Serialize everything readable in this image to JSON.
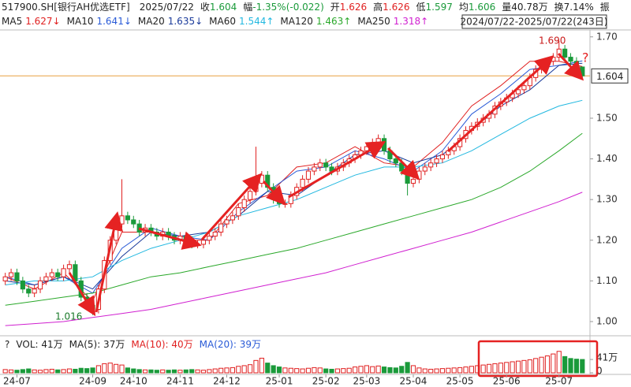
{
  "chart_data": {
    "type": "candlestick",
    "title": "517900.SH[银行AH优选ETF]",
    "date": "2025/07/22",
    "quote": [
      {
        "name": "收",
        "text": "1.604",
        "color": "#1a9a3a"
      },
      {
        "name": "幅",
        "text": "-1.35%(-0.022)",
        "color": "#1a9a3a"
      },
      {
        "name": "开",
        "text": "1.626",
        "color": "#e02020"
      },
      {
        "name": "高",
        "text": "1.626",
        "color": "#e02020"
      },
      {
        "name": "低",
        "text": "1.597",
        "color": "#1a9a3a"
      },
      {
        "name": "均",
        "text": "1.606",
        "color": "#1a9a3a"
      },
      {
        "name": "量",
        "text": "40.78万",
        "color": "#222222"
      },
      {
        "name": "换",
        "text": "7.14%",
        "color": "#222222"
      },
      {
        "name": "振",
        "text": "",
        "color": "#222222"
      }
    ],
    "range_label": "2024/07/22-2025/07/22(243日)",
    "ylim": [
      0.967,
      1.717
    ],
    "yticks": [
      {
        "value": 1.0,
        "label": "1.00"
      },
      {
        "value": 1.1,
        "label": "1.10"
      },
      {
        "value": 1.2,
        "label": "1.20"
      },
      {
        "value": 1.3,
        "label": "1.30"
      },
      {
        "value": 1.4,
        "label": "1.40"
      },
      {
        "value": 1.5,
        "label": "1.50"
      },
      {
        "value": 1.7,
        "label": "1.70"
      }
    ],
    "last_price": 1.604,
    "xticks": [
      {
        "value": 2,
        "label": "24-07"
      },
      {
        "value": 15,
        "label": "24-09"
      },
      {
        "value": 22,
        "label": "24-10"
      },
      {
        "value": 30,
        "label": "24-11"
      },
      {
        "value": 38,
        "label": "24-12"
      },
      {
        "value": 47,
        "label": "25-01"
      },
      {
        "value": 55,
        "label": "25-02"
      },
      {
        "value": 62,
        "label": "25-03"
      },
      {
        "value": 70,
        "label": "25-04"
      },
      {
        "value": 78,
        "label": "25-05"
      },
      {
        "value": 86,
        "label": "25-06"
      },
      {
        "value": 95,
        "label": "25-07"
      }
    ],
    "candles": {
      "open": [
        1.1,
        1.11,
        1.12,
        1.1,
        1.08,
        1.07,
        1.08,
        1.1,
        1.11,
        1.12,
        1.11,
        1.13,
        1.14,
        1.1,
        1.06,
        1.04,
        1.03,
        1.08,
        1.15,
        1.2,
        1.24,
        1.26,
        1.25,
        1.24,
        1.22,
        1.23,
        1.22,
        1.21,
        1.22,
        1.21,
        1.2,
        1.21,
        1.2,
        1.19,
        1.19,
        1.2,
        1.21,
        1.22,
        1.24,
        1.25,
        1.26,
        1.28,
        1.3,
        1.32,
        1.34,
        1.36,
        1.33,
        1.3,
        1.29,
        1.29,
        1.31,
        1.33,
        1.35,
        1.37,
        1.38,
        1.39,
        1.38,
        1.37,
        1.38,
        1.39,
        1.4,
        1.41,
        1.42,
        1.43,
        1.44,
        1.45,
        1.42,
        1.4,
        1.39,
        1.37,
        1.34,
        1.35,
        1.37,
        1.38,
        1.39,
        1.4,
        1.41,
        1.42,
        1.43,
        1.45,
        1.47,
        1.48,
        1.49,
        1.5,
        1.51,
        1.53,
        1.54,
        1.55,
        1.56,
        1.57,
        1.58,
        1.6,
        1.62,
        1.63,
        1.64,
        1.65,
        1.67,
        1.65,
        1.64,
        1.626
      ],
      "high": [
        1.12,
        1.13,
        1.13,
        1.11,
        1.09,
        1.09,
        1.11,
        1.12,
        1.13,
        1.13,
        1.14,
        1.15,
        1.15,
        1.11,
        1.07,
        1.05,
        1.09,
        1.16,
        1.21,
        1.25,
        1.35,
        1.27,
        1.26,
        1.25,
        1.24,
        1.24,
        1.23,
        1.23,
        1.23,
        1.22,
        1.22,
        1.22,
        1.21,
        1.2,
        1.21,
        1.22,
        1.23,
        1.25,
        1.26,
        1.27,
        1.29,
        1.31,
        1.33,
        1.43,
        1.37,
        1.37,
        1.34,
        1.31,
        1.3,
        1.32,
        1.34,
        1.36,
        1.38,
        1.39,
        1.4,
        1.4,
        1.39,
        1.39,
        1.4,
        1.41,
        1.42,
        1.43,
        1.44,
        1.45,
        1.46,
        1.46,
        1.43,
        1.41,
        1.4,
        1.38,
        1.36,
        1.38,
        1.39,
        1.4,
        1.41,
        1.42,
        1.43,
        1.44,
        1.46,
        1.48,
        1.49,
        1.5,
        1.51,
        1.52,
        1.54,
        1.55,
        1.56,
        1.57,
        1.58,
        1.59,
        1.61,
        1.63,
        1.64,
        1.65,
        1.66,
        1.69,
        1.68,
        1.66,
        1.65,
        1.626
      ],
      "low": [
        1.09,
        1.1,
        1.09,
        1.07,
        1.06,
        1.06,
        1.07,
        1.09,
        1.1,
        1.1,
        1.1,
        1.12,
        1.09,
        1.05,
        1.03,
        1.016,
        1.02,
        1.07,
        1.14,
        1.19,
        1.23,
        1.24,
        1.23,
        1.21,
        1.21,
        1.21,
        1.2,
        1.2,
        1.2,
        1.19,
        1.19,
        1.19,
        1.18,
        1.18,
        1.18,
        1.19,
        1.2,
        1.21,
        1.23,
        1.24,
        1.25,
        1.27,
        1.29,
        1.31,
        1.33,
        1.32,
        1.29,
        1.28,
        1.28,
        1.28,
        1.3,
        1.32,
        1.34,
        1.36,
        1.37,
        1.37,
        1.36,
        1.36,
        1.37,
        1.38,
        1.39,
        1.4,
        1.41,
        1.42,
        1.43,
        1.41,
        1.39,
        1.38,
        1.36,
        1.31,
        1.33,
        1.34,
        1.36,
        1.37,
        1.38,
        1.39,
        1.4,
        1.41,
        1.42,
        1.44,
        1.46,
        1.47,
        1.48,
        1.49,
        1.5,
        1.52,
        1.53,
        1.54,
        1.55,
        1.56,
        1.57,
        1.59,
        1.61,
        1.62,
        1.63,
        1.64,
        1.64,
        1.63,
        1.62,
        1.597
      ],
      "close": [
        1.11,
        1.12,
        1.1,
        1.08,
        1.07,
        1.08,
        1.1,
        1.11,
        1.12,
        1.11,
        1.13,
        1.14,
        1.1,
        1.06,
        1.04,
        1.03,
        1.08,
        1.15,
        1.2,
        1.24,
        1.26,
        1.25,
        1.24,
        1.22,
        1.23,
        1.22,
        1.21,
        1.22,
        1.21,
        1.2,
        1.21,
        1.2,
        1.19,
        1.19,
        1.2,
        1.21,
        1.22,
        1.24,
        1.25,
        1.26,
        1.28,
        1.3,
        1.32,
        1.34,
        1.36,
        1.33,
        1.3,
        1.29,
        1.29,
        1.31,
        1.33,
        1.35,
        1.37,
        1.38,
        1.39,
        1.38,
        1.37,
        1.38,
        1.39,
        1.4,
        1.41,
        1.42,
        1.43,
        1.44,
        1.45,
        1.42,
        1.4,
        1.39,
        1.37,
        1.34,
        1.35,
        1.37,
        1.38,
        1.39,
        1.4,
        1.41,
        1.42,
        1.43,
        1.45,
        1.47,
        1.48,
        1.49,
        1.5,
        1.51,
        1.53,
        1.54,
        1.55,
        1.56,
        1.57,
        1.58,
        1.6,
        1.62,
        1.63,
        1.64,
        1.65,
        1.67,
        1.65,
        1.64,
        1.63,
        1.604
      ]
    },
    "ma": {
      "index": [
        0,
        5,
        10,
        15,
        20,
        25,
        30,
        35,
        40,
        45,
        50,
        55,
        60,
        65,
        70,
        75,
        80,
        85,
        90,
        95,
        99
      ],
      "series": [
        {
          "name": "MA5",
          "value": 1.627,
          "value_label": "1.627↓",
          "color": "#e02020",
          "values": [
            1.11,
            1.08,
            1.12,
            1.05,
            1.22,
            1.22,
            1.2,
            1.2,
            1.29,
            1.31,
            1.38,
            1.39,
            1.43,
            1.39,
            1.38,
            1.44,
            1.53,
            1.58,
            1.64,
            1.64,
            1.627
          ]
        },
        {
          "name": "MA10",
          "value": 1.641,
          "value_label": "1.641↓",
          "color": "#2a5bd7",
          "values": [
            1.11,
            1.09,
            1.11,
            1.07,
            1.18,
            1.23,
            1.21,
            1.2,
            1.27,
            1.32,
            1.37,
            1.38,
            1.42,
            1.4,
            1.37,
            1.42,
            1.51,
            1.56,
            1.62,
            1.63,
            1.641
          ]
        },
        {
          "name": "MA20",
          "value": 1.635,
          "value_label": "1.635↓",
          "color": "#1a3a9a",
          "values": [
            1.1,
            1.09,
            1.11,
            1.08,
            1.16,
            1.22,
            1.21,
            1.22,
            1.26,
            1.32,
            1.31,
            1.36,
            1.41,
            1.42,
            1.39,
            1.41,
            1.47,
            1.53,
            1.57,
            1.63,
            1.635
          ]
        },
        {
          "name": "MA60",
          "value": 1.544,
          "value_label": "1.544↑",
          "color": "#22b8e0",
          "values": [
            1.09,
            1.1,
            1.1,
            1.11,
            1.15,
            1.18,
            1.2,
            1.22,
            1.26,
            1.28,
            1.3,
            1.33,
            1.36,
            1.38,
            1.38,
            1.39,
            1.42,
            1.46,
            1.5,
            1.53,
            1.544
          ]
        },
        {
          "name": "MA120",
          "value": 1.463,
          "value_label": "1.463↑",
          "color": "#2aa82a",
          "values": [
            1.04,
            1.05,
            1.06,
            1.07,
            1.09,
            1.11,
            1.12,
            1.135,
            1.15,
            1.165,
            1.18,
            1.2,
            1.22,
            1.24,
            1.26,
            1.28,
            1.3,
            1.33,
            1.37,
            1.42,
            1.463
          ]
        },
        {
          "name": "MA250",
          "value": 1.318,
          "value_label": "1.318↑",
          "color": "#d020d0",
          "values": [
            0.99,
            0.995,
            1.0,
            1.01,
            1.02,
            1.03,
            1.045,
            1.06,
            1.075,
            1.09,
            1.105,
            1.12,
            1.14,
            1.16,
            1.18,
            1.2,
            1.22,
            1.245,
            1.27,
            1.295,
            1.318
          ]
        }
      ]
    },
    "volume": {
      "legend": [
        {
          "text": "?",
          "color": "#222222"
        },
        {
          "text": "VOL: 41万",
          "color": "#222222"
        },
        {
          "text": "MA(5): 37万",
          "color": "#222222"
        },
        {
          "text": "MA(10): 40万",
          "color": "#e02020"
        },
        {
          "text": "MA(20): 39万",
          "color": "#2a5bd7"
        }
      ],
      "ylim": [
        0,
        80
      ],
      "yticks": [
        0,
        {
          "value": 41,
          "label": "41万"
        }
      ],
      "values": [
        10,
        9,
        8,
        10,
        12,
        9,
        8,
        10,
        11,
        9,
        10,
        12,
        11,
        14,
        13,
        15,
        22,
        28,
        30,
        26,
        24,
        15,
        12,
        10,
        9,
        9,
        8,
        9,
        8,
        9,
        8,
        9,
        10,
        9,
        8,
        10,
        12,
        14,
        15,
        16,
        20,
        22,
        25,
        38,
        45,
        30,
        22,
        18,
        15,
        14,
        13,
        12,
        14,
        16,
        15,
        12,
        11,
        12,
        13,
        14,
        18,
        20,
        22,
        19,
        21,
        18,
        16,
        15,
        20,
        32,
        22,
        15,
        12,
        11,
        12,
        13,
        14,
        15,
        16,
        18,
        20,
        22,
        24,
        26,
        28,
        30,
        32,
        34,
        36,
        38,
        40,
        44,
        48,
        52,
        58,
        66,
        50,
        44,
        42,
        41
      ]
    },
    "annotations": [
      "1.690",
      "1.016",
      "?"
    ]
  }
}
